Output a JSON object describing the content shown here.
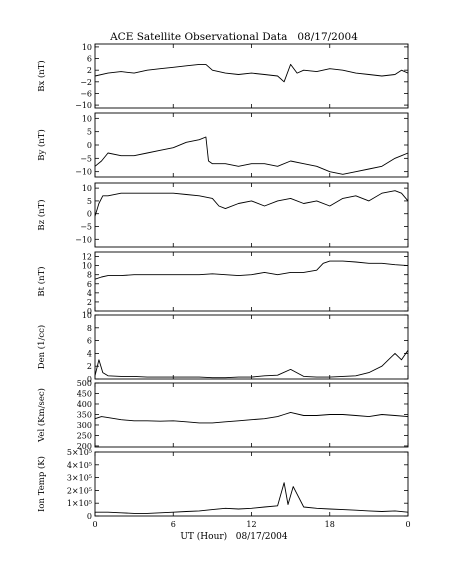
{
  "figure": {
    "title": "ACE Satellite Observational Data   08/17/2004",
    "xlabel": "UT (Hour)   08/17/2004",
    "xticks": [
      "0",
      "6",
      "12",
      "18",
      "0"
    ]
  },
  "chart_data": [
    {
      "type": "line",
      "ylabel": "Bx (nT)",
      "ylim": [
        -11,
        11
      ],
      "yticks": [
        10,
        6,
        2,
        -2,
        -6,
        -10
      ],
      "ytick_labels": [
        "10",
        "6",
        "2",
        "−2",
        "−6",
        "−10"
      ],
      "x": [
        0,
        1,
        2,
        3,
        4,
        5,
        6,
        7,
        8,
        8.5,
        9,
        10,
        11,
        12,
        13,
        14,
        14.5,
        15,
        15.5,
        16,
        17,
        18,
        19,
        20,
        21,
        22,
        23,
        23.5,
        24
      ],
      "values": [
        0,
        1,
        1.5,
        1,
        2,
        2.5,
        3,
        3.5,
        4,
        4,
        2,
        1,
        0.5,
        1,
        0.5,
        0,
        -2,
        4,
        1,
        2,
        1.5,
        2.5,
        2,
        1,
        0.5,
        0,
        0.5,
        2,
        1
      ]
    },
    {
      "type": "line",
      "ylabel": "By (nT)",
      "ylim": [
        -12,
        12
      ],
      "yticks": [
        10,
        5,
        0,
        -5,
        -10
      ],
      "ytick_labels": [
        "10",
        "5",
        "0",
        "−5",
        "−10"
      ],
      "x": [
        0,
        0.5,
        1,
        2,
        3,
        4,
        5,
        6,
        7,
        8,
        8.5,
        8.7,
        9,
        10,
        11,
        12,
        13,
        14,
        15,
        16,
        17,
        18,
        19,
        20,
        21,
        22,
        23,
        23.5,
        24
      ],
      "values": [
        -8,
        -6,
        -3,
        -4,
        -4,
        -3,
        -2,
        -1,
        1,
        2,
        3,
        -6,
        -7,
        -7,
        -8,
        -7,
        -7,
        -8,
        -6,
        -7,
        -8,
        -10,
        -11,
        -10,
        -9,
        -8,
        -5,
        -4,
        -3
      ]
    },
    {
      "type": "line",
      "ylabel": "Bz (nT)",
      "ylim": [
        -13,
        12
      ],
      "yticks": [
        10,
        5,
        0,
        -5,
        -10
      ],
      "ytick_labels": [
        "10",
        "5",
        "0",
        "−5",
        "−10"
      ],
      "x": [
        0,
        0.3,
        0.6,
        1,
        2,
        3,
        4,
        5,
        6,
        7,
        8,
        9,
        9.5,
        10,
        11,
        12,
        13,
        14,
        15,
        16,
        17,
        18,
        19,
        20,
        21,
        22,
        23,
        23.5,
        24
      ],
      "values": [
        -1,
        4,
        7,
        7,
        8,
        8,
        8,
        8,
        8,
        7.5,
        7,
        6,
        3,
        2,
        4,
        5,
        3,
        5,
        6,
        4,
        5,
        3,
        6,
        7,
        5,
        8,
        9,
        8,
        5
      ]
    },
    {
      "type": "line",
      "ylabel": "Bt (nT)",
      "ylim": [
        0,
        13
      ],
      "yticks": [
        12,
        10,
        8,
        6,
        4,
        2,
        0
      ],
      "ytick_labels": [
        "12",
        "10",
        "8",
        "6",
        "4",
        "2",
        "0"
      ],
      "x": [
        0,
        0.5,
        1,
        2,
        3,
        4,
        5,
        6,
        7,
        8,
        9,
        10,
        11,
        12,
        13,
        14,
        15,
        16,
        17,
        17.5,
        18,
        19,
        20,
        21,
        22,
        23,
        24
      ],
      "values": [
        7,
        7.5,
        7.8,
        7.8,
        8,
        8,
        8,
        8,
        8,
        8,
        8.2,
        8,
        7.8,
        8,
        8.5,
        8,
        8.5,
        8.5,
        9,
        10.5,
        11,
        11,
        10.8,
        10.5,
        10.5,
        10.2,
        10
      ]
    },
    {
      "type": "line",
      "ylabel": "Den (1/cc)",
      "ylim": [
        0,
        10
      ],
      "yticks": [
        10,
        8,
        6,
        4,
        2,
        0
      ],
      "ytick_labels": [
        "10",
        "8",
        "6",
        "4",
        "2",
        "0"
      ],
      "x": [
        0,
        0.3,
        0.6,
        1,
        2,
        3,
        4,
        5,
        6,
        7,
        8,
        9,
        10,
        11,
        12,
        13,
        14,
        15,
        16,
        17,
        18,
        19,
        20,
        21,
        22,
        22.5,
        23,
        23.5,
        24
      ],
      "values": [
        0.5,
        3,
        1,
        0.5,
        0.4,
        0.4,
        0.3,
        0.3,
        0.3,
        0.3,
        0.3,
        0.2,
        0.2,
        0.3,
        0.3,
        0.5,
        0.6,
        1.5,
        0.4,
        0.3,
        0.3,
        0.4,
        0.5,
        1,
        2,
        3,
        4,
        3,
        4.5
      ]
    },
    {
      "type": "line",
      "ylabel": "Vel (Km/sec)",
      "ylim": [
        195,
        500
      ],
      "yticks": [
        500,
        450,
        400,
        350,
        300,
        250,
        200
      ],
      "ytick_labels": [
        "500",
        "450",
        "400",
        "350",
        "300",
        "250",
        "200"
      ],
      "x": [
        0,
        0.5,
        1,
        2,
        3,
        4,
        5,
        6,
        7,
        8,
        9,
        10,
        11,
        12,
        13,
        14,
        14.5,
        15,
        16,
        17,
        18,
        19,
        20,
        21,
        22,
        23,
        24
      ],
      "values": [
        330,
        340,
        335,
        325,
        320,
        320,
        318,
        320,
        315,
        310,
        310,
        315,
        320,
        325,
        330,
        340,
        350,
        360,
        345,
        345,
        350,
        350,
        345,
        340,
        350,
        345,
        340
      ]
    },
    {
      "type": "line",
      "ylabel": "Ion Temp (K)",
      "ylim": [
        0,
        500000
      ],
      "yticks": [
        500000,
        400000,
        300000,
        200000,
        100000,
        0
      ],
      "ytick_labels": [
        "5×10⁵",
        "4×10⁵",
        "3×10⁵",
        "2×10⁵",
        "1×10⁵",
        "0"
      ],
      "x": [
        0,
        1,
        2,
        3,
        4,
        5,
        6,
        7,
        8,
        9,
        10,
        11,
        12,
        13,
        14,
        14.5,
        14.8,
        15.2,
        16,
        17,
        18,
        19,
        20,
        21,
        22,
        23,
        24
      ],
      "values": [
        30000,
        30000,
        25000,
        20000,
        20000,
        25000,
        30000,
        35000,
        40000,
        50000,
        60000,
        55000,
        60000,
        70000,
        80000,
        260000,
        90000,
        230000,
        70000,
        60000,
        55000,
        50000,
        45000,
        40000,
        35000,
        40000,
        30000
      ]
    }
  ]
}
